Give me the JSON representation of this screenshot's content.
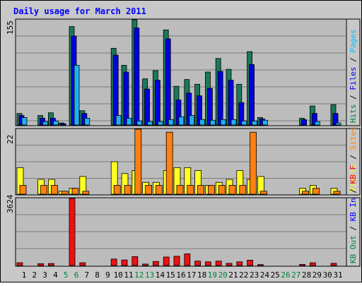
{
  "chart_data": [
    {
      "type": "bar",
      "title": "Daily usage for March 2011",
      "categories": [
        "1",
        "2",
        "3",
        "4",
        "5",
        "6",
        "7",
        "8",
        "9",
        "10",
        "11",
        "12",
        "13",
        "14",
        "15",
        "16",
        "17",
        "18",
        "19",
        "20",
        "21",
        "22",
        "23",
        "24",
        "25",
        "26",
        "27",
        "28",
        "29",
        "30",
        "31"
      ],
      "weekend_days": [
        "5",
        "6",
        "12",
        "13",
        "19",
        "20",
        "26",
        "27"
      ],
      "ymax_label": "155",
      "ylim": [
        0,
        155
      ],
      "legend": [
        {
          "label": "Hits",
          "color": "#008040"
        },
        {
          "label": "Files",
          "color": "#0000ff"
        },
        {
          "label": "Pages",
          "color": "#00c0ff"
        }
      ],
      "series": [
        {
          "name": "Hits",
          "color": "#1a7a5a",
          "values": [
            17,
            0,
            14,
            18,
            3,
            145,
            21,
            0,
            0,
            113,
            88,
            155,
            68,
            80,
            140,
            57,
            67,
            60,
            78,
            98,
            82,
            60,
            108,
            11,
            0,
            0,
            0,
            10,
            28,
            0,
            30
          ]
        },
        {
          "name": "Files",
          "color": "#0000e0",
          "values": [
            14,
            0,
            10,
            10,
            2,
            131,
            17,
            0,
            0,
            103,
            78,
            143,
            53,
            66,
            127,
            37,
            47,
            43,
            54,
            79,
            66,
            33,
            89,
            9,
            0,
            0,
            0,
            8,
            17,
            0,
            17
          ]
        },
        {
          "name": "Pages",
          "color": "#22b0ee",
          "values": [
            11,
            0,
            5,
            6,
            0,
            88,
            10,
            0,
            0,
            14,
            10,
            6,
            5,
            5,
            8,
            12,
            14,
            8,
            7,
            8,
            8,
            6,
            6,
            7,
            0,
            0,
            0,
            0,
            5,
            0,
            3
          ]
        }
      ]
    },
    {
      "type": "bar",
      "ymax_label": "22",
      "ylim": [
        0,
        22
      ],
      "legend": [
        {
          "label": "Visits",
          "color": "#ffff00"
        },
        {
          "label": "Sites",
          "color": "#ff8000"
        }
      ],
      "series": [
        {
          "name": "Visits",
          "color": "#ffff22",
          "values": [
            9,
            0,
            5,
            5,
            1,
            2,
            6,
            0,
            0,
            11,
            7,
            8,
            4,
            4,
            8,
            9,
            9,
            8,
            3,
            4,
            5,
            8,
            5,
            6,
            0,
            0,
            0,
            2,
            3,
            0,
            2
          ]
        },
        {
          "name": "Sites",
          "color": "#ff8010",
          "values": [
            3,
            0,
            3,
            3,
            1,
            2,
            1,
            0,
            0,
            3,
            3,
            22,
            3,
            3,
            21,
            3,
            3,
            3,
            3,
            3,
            3,
            3,
            21,
            1,
            0,
            0,
            0,
            1,
            2,
            0,
            1
          ]
        }
      ]
    },
    {
      "type": "bar",
      "ymax_label": "3624",
      "ylim": [
        0,
        3624
      ],
      "legend": [
        {
          "label": "KB Out",
          "color": "#008040"
        },
        {
          "label": "KB In",
          "color": "#0000ff"
        },
        {
          "label": "KB F",
          "color": "#ff0000"
        }
      ],
      "series": [
        {
          "name": "KB F",
          "color": "#ee1111",
          "values": [
            150,
            0,
            100,
            110,
            0,
            3624,
            150,
            0,
            0,
            350,
            300,
            480,
            80,
            220,
            460,
            500,
            630,
            240,
            200,
            240,
            120,
            200,
            290,
            50,
            0,
            0,
            0,
            60,
            150,
            0,
            120
          ]
        }
      ]
    }
  ]
}
